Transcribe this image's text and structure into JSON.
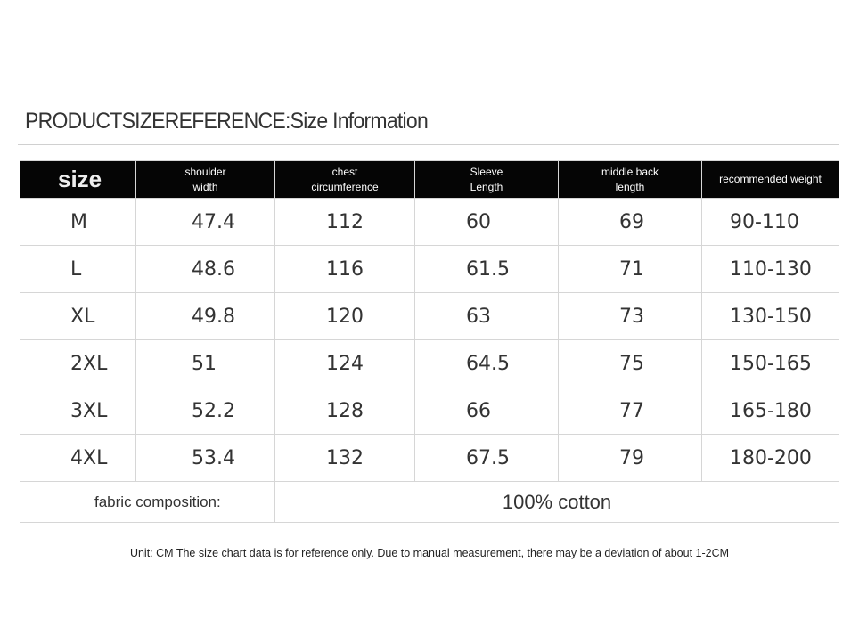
{
  "header": {
    "title": "PRODUCTSIZEREFERENCE:Size Information"
  },
  "table": {
    "columns": [
      [
        "size"
      ],
      [
        "shoulder",
        "width"
      ],
      [
        "chest",
        "circumference"
      ],
      [
        "Sleeve",
        "Length"
      ],
      [
        "middle back",
        "length"
      ],
      [
        "recommended weight"
      ]
    ],
    "rows": [
      [
        "M",
        "47.4",
        "112",
        "60",
        "69",
        "90-110"
      ],
      [
        "L",
        "48.6",
        "116",
        "61.5",
        "71",
        "110-130"
      ],
      [
        "XL",
        "49.8",
        "120",
        "63",
        "73",
        "130-150"
      ],
      [
        "2XL",
        "51",
        "124",
        "64.5",
        "75",
        "150-165"
      ],
      [
        "3XL",
        "52.2",
        "128",
        "66",
        "77",
        "165-180"
      ],
      [
        "4XL",
        "53.4",
        "132",
        "67.5",
        "79",
        "180-200"
      ]
    ],
    "footer": {
      "label": "fabric composition:",
      "value": "100% cotton"
    }
  },
  "note": "Unit: CM The size chart data is for reference only. Due to manual measurement, there may be a deviation of about 1-2CM"
}
